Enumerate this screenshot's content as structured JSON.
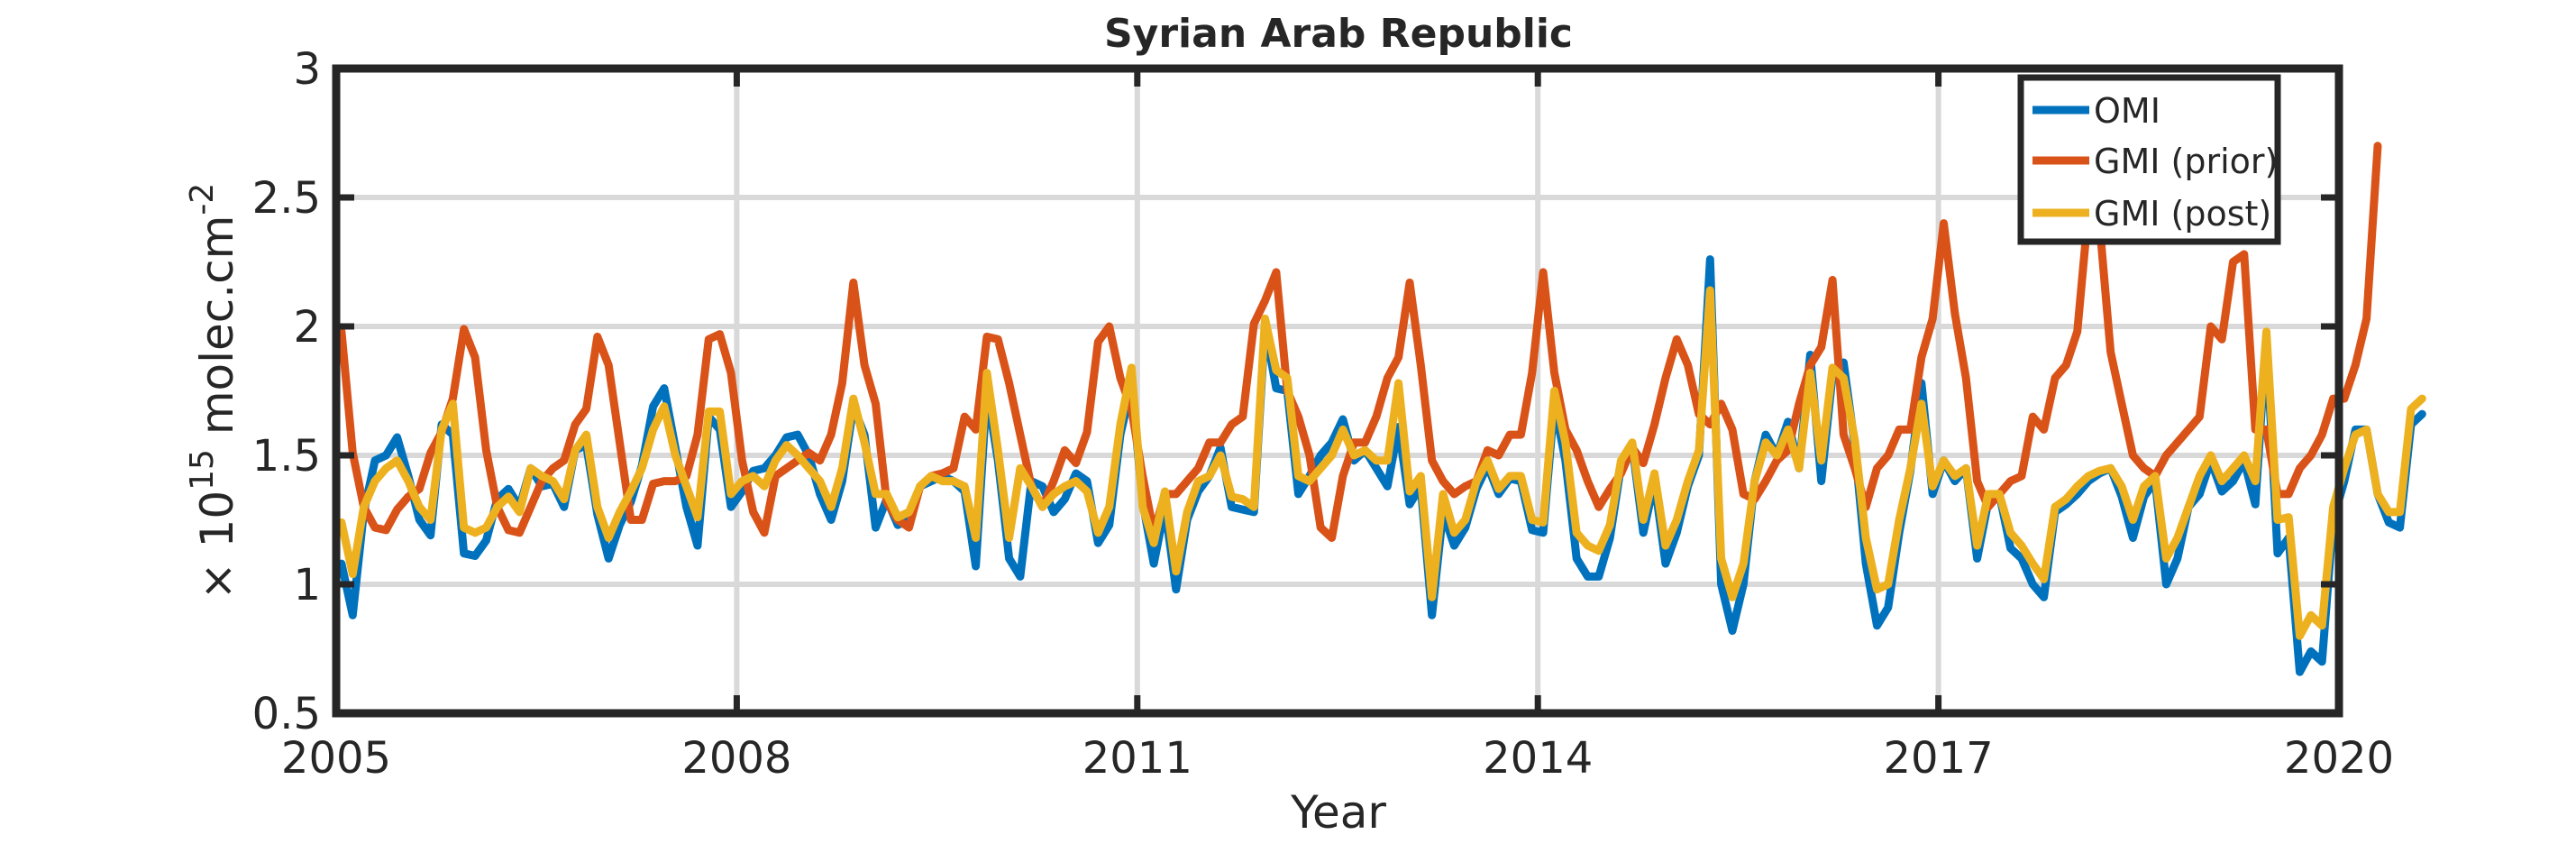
{
  "chart_data": {
    "type": "line",
    "title": "Syrian Arab Republic",
    "xlabel": "Year",
    "ylabel": {
      "prefix": "× 10",
      "exponent": "15",
      "unit": " molec.cm",
      "unit_exponent": "-2"
    },
    "xlim": [
      2005,
      2020
    ],
    "ylim": [
      0.5,
      3
    ],
    "xticks": [
      2005,
      2008,
      2011,
      2014,
      2017,
      2020
    ],
    "xtick_labels": [
      "2005",
      "2008",
      "2011",
      "2014",
      "2017",
      "2020"
    ],
    "yticks": [
      0.5,
      1,
      1.5,
      2,
      2.5,
      3
    ],
    "ytick_labels": [
      "0.5",
      "1",
      "1.5",
      "2",
      "2.5",
      "3"
    ],
    "grid": true,
    "legend_position": "top-right",
    "x_start": 2005.04,
    "x_step_months": 1,
    "series": [
      {
        "name": "OMI",
        "color": "#0072BD",
        "values": [
          1.08,
          0.88,
          1.28,
          1.48,
          1.5,
          1.57,
          1.42,
          1.25,
          1.19,
          1.62,
          1.58,
          1.12,
          1.11,
          1.17,
          1.33,
          1.37,
          1.3,
          1.45,
          1.38,
          1.39,
          1.3,
          1.52,
          1.54,
          1.27,
          1.1,
          1.23,
          1.32,
          1.46,
          1.69,
          1.76,
          1.53,
          1.3,
          1.15,
          1.65,
          1.6,
          1.3,
          1.36,
          1.44,
          1.45,
          1.5,
          1.57,
          1.58,
          1.5,
          1.35,
          1.25,
          1.4,
          1.69,
          1.58,
          1.22,
          1.33,
          1.23,
          1.25,
          1.38,
          1.4,
          1.42,
          1.4,
          1.36,
          1.07,
          1.75,
          1.48,
          1.1,
          1.03,
          1.4,
          1.38,
          1.28,
          1.33,
          1.43,
          1.4,
          1.16,
          1.23,
          1.58,
          1.77,
          1.32,
          1.08,
          1.3,
          0.98,
          1.25,
          1.36,
          1.42,
          1.53,
          1.3,
          1.29,
          1.28,
          2.0,
          1.76,
          1.75,
          1.35,
          1.42,
          1.5,
          1.55,
          1.64,
          1.48,
          1.52,
          1.45,
          1.38,
          1.61,
          1.31,
          1.38,
          0.88,
          1.28,
          1.15,
          1.22,
          1.37,
          1.46,
          1.35,
          1.41,
          1.4,
          1.21,
          1.2,
          1.7,
          1.48,
          1.1,
          1.03,
          1.03,
          1.18,
          1.46,
          1.54,
          1.2,
          1.4,
          1.08,
          1.2,
          1.38,
          1.5,
          2.26,
          1.0,
          0.82,
          1.0,
          1.4,
          1.58,
          1.5,
          1.63,
          1.45,
          1.89,
          1.4,
          1.81,
          1.86,
          1.54,
          1.08,
          0.84,
          0.91,
          1.2,
          1.44,
          1.78,
          1.35,
          1.48,
          1.4,
          1.45,
          1.1,
          1.32,
          1.35,
          1.14,
          1.1,
          1.0,
          0.95,
          1.28,
          1.31,
          1.35,
          1.4,
          1.43,
          1.45,
          1.34,
          1.18,
          1.34,
          1.4,
          1.0,
          1.1,
          1.3,
          1.35,
          1.48,
          1.36,
          1.4,
          1.48,
          1.31,
          1.95,
          1.12,
          1.18,
          0.66,
          0.74,
          0.7,
          1.25,
          1.4,
          1.6,
          1.6,
          1.35,
          1.24,
          1.22,
          1.62,
          1.66
        ]
      },
      {
        "name": "GMI (prior)",
        "color": "#D95319",
        "values": [
          1.98,
          1.51,
          1.3,
          1.22,
          1.21,
          1.29,
          1.34,
          1.37,
          1.51,
          1.59,
          1.72,
          1.99,
          1.88,
          1.52,
          1.3,
          1.21,
          1.2,
          1.3,
          1.4,
          1.45,
          1.48,
          1.62,
          1.68,
          1.96,
          1.85,
          1.55,
          1.25,
          1.25,
          1.39,
          1.4,
          1.4,
          1.42,
          1.58,
          1.95,
          1.97,
          1.82,
          1.48,
          1.28,
          1.2,
          1.42,
          1.45,
          1.48,
          1.51,
          1.48,
          1.58,
          1.78,
          2.17,
          1.85,
          1.7,
          1.32,
          1.25,
          1.22,
          1.38,
          1.42,
          1.43,
          1.45,
          1.65,
          1.6,
          1.96,
          1.95,
          1.78,
          1.58,
          1.38,
          1.3,
          1.4,
          1.52,
          1.47,
          1.59,
          1.94,
          2.0,
          1.8,
          1.68,
          1.42,
          1.2,
          1.35,
          1.35,
          1.4,
          1.45,
          1.55,
          1.55,
          1.62,
          1.65,
          2.01,
          2.1,
          2.21,
          1.75,
          1.65,
          1.5,
          1.22,
          1.18,
          1.42,
          1.55,
          1.55,
          1.65,
          1.8,
          1.88,
          2.17,
          1.85,
          1.48,
          1.4,
          1.35,
          1.38,
          1.4,
          1.52,
          1.5,
          1.58,
          1.58,
          1.82,
          2.21,
          1.82,
          1.6,
          1.52,
          1.4,
          1.3,
          1.37,
          1.43,
          1.53,
          1.47,
          1.62,
          1.8,
          1.95,
          1.85,
          1.66,
          1.62,
          1.7,
          1.6,
          1.35,
          1.33,
          1.4,
          1.48,
          1.52,
          1.7,
          1.85,
          1.92,
          2.18,
          1.58,
          1.45,
          1.3,
          1.45,
          1.5,
          1.6,
          1.6,
          1.88,
          2.03,
          2.4,
          2.05,
          1.8,
          1.4,
          1.3,
          1.35,
          1.4,
          1.42,
          1.65,
          1.6,
          1.8,
          1.85,
          1.98,
          2.45,
          2.4,
          1.9,
          1.7,
          1.5,
          1.45,
          1.42,
          1.5,
          1.55,
          1.6,
          1.65,
          2.0,
          1.95,
          2.25,
          2.28,
          1.6,
          1.6,
          1.35,
          1.35,
          1.45,
          1.5,
          1.58,
          1.72,
          1.72,
          1.85,
          2.03,
          2.7
        ]
      },
      {
        "name": "GMI (post)",
        "color": "#EDB120",
        "values": [
          1.24,
          1.04,
          1.3,
          1.4,
          1.45,
          1.48,
          1.4,
          1.3,
          1.25,
          1.6,
          1.7,
          1.22,
          1.2,
          1.22,
          1.3,
          1.34,
          1.28,
          1.45,
          1.42,
          1.4,
          1.33,
          1.52,
          1.58,
          1.3,
          1.18,
          1.28,
          1.36,
          1.45,
          1.6,
          1.69,
          1.5,
          1.38,
          1.26,
          1.67,
          1.67,
          1.35,
          1.4,
          1.42,
          1.38,
          1.48,
          1.54,
          1.5,
          1.45,
          1.4,
          1.3,
          1.45,
          1.72,
          1.55,
          1.35,
          1.35,
          1.26,
          1.28,
          1.38,
          1.42,
          1.4,
          1.4,
          1.38,
          1.18,
          1.82,
          1.52,
          1.18,
          1.45,
          1.38,
          1.3,
          1.35,
          1.38,
          1.4,
          1.36,
          1.2,
          1.3,
          1.62,
          1.84,
          1.3,
          1.16,
          1.36,
          1.05,
          1.28,
          1.4,
          1.42,
          1.5,
          1.34,
          1.33,
          1.3,
          2.03,
          1.83,
          1.8,
          1.42,
          1.4,
          1.45,
          1.5,
          1.6,
          1.5,
          1.52,
          1.48,
          1.48,
          1.78,
          1.36,
          1.42,
          0.95,
          1.35,
          1.2,
          1.25,
          1.4,
          1.48,
          1.37,
          1.42,
          1.42,
          1.25,
          1.24,
          1.75,
          1.55,
          1.2,
          1.15,
          1.13,
          1.23,
          1.48,
          1.55,
          1.25,
          1.43,
          1.15,
          1.25,
          1.4,
          1.52,
          2.14,
          1.1,
          0.95,
          1.08,
          1.4,
          1.55,
          1.5,
          1.6,
          1.45,
          1.82,
          1.48,
          1.84,
          1.8,
          1.56,
          1.18,
          0.98,
          1.0,
          1.25,
          1.45,
          1.7,
          1.38,
          1.48,
          1.42,
          1.45,
          1.15,
          1.35,
          1.35,
          1.2,
          1.15,
          1.08,
          1.02,
          1.3,
          1.33,
          1.38,
          1.42,
          1.44,
          1.45,
          1.38,
          1.25,
          1.38,
          1.42,
          1.1,
          1.18,
          1.3,
          1.42,
          1.5,
          1.4,
          1.45,
          1.5,
          1.4,
          1.98,
          1.25,
          1.26,
          0.8,
          0.88,
          0.84,
          1.3,
          1.45,
          1.58,
          1.6,
          1.35,
          1.28,
          1.28,
          1.68,
          1.72
        ]
      }
    ]
  }
}
